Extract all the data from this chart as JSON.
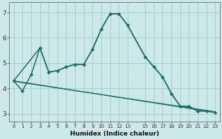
{
  "xlabel": "Humidex (Indice chaleur)",
  "bg_color": "#cce8e8",
  "grid_color": "#aacccc",
  "line_color": "#1a6e6a",
  "xlim": [
    -0.5,
    23.5
  ],
  "ylim": [
    2.7,
    7.4
  ],
  "xticks": [
    0,
    1,
    2,
    3,
    4,
    5,
    6,
    7,
    8,
    9,
    10,
    11,
    12,
    13,
    15,
    16,
    17,
    18,
    19,
    20,
    21,
    22,
    23
  ],
  "yticks": [
    3,
    4,
    5,
    6,
    7
  ],
  "curve1_x": [
    0,
    1,
    2,
    3,
    4,
    5,
    6,
    7,
    8,
    9,
    10,
    11,
    12,
    13,
    15,
    16,
    17,
    18,
    19,
    20,
    21
  ],
  "curve1_y": [
    4.3,
    3.9,
    4.55,
    5.6,
    4.65,
    4.7,
    4.85,
    4.95,
    4.95,
    5.55,
    6.35,
    6.95,
    6.95,
    6.5,
    5.25,
    4.85,
    4.45,
    3.8,
    3.3,
    3.3,
    3.1
  ],
  "curve2_x": [
    0,
    3,
    4,
    5,
    6,
    7,
    8,
    9,
    10,
    11,
    12,
    13,
    15,
    16,
    17,
    18,
    19,
    20,
    21,
    22,
    23
  ],
  "curve2_y": [
    4.3,
    5.6,
    4.65,
    4.7,
    4.85,
    4.95,
    4.95,
    5.55,
    6.35,
    6.95,
    6.95,
    6.5,
    5.25,
    4.85,
    4.45,
    3.8,
    3.3,
    3.3,
    3.1,
    3.1,
    3.05
  ],
  "trend1_x": [
    0,
    23
  ],
  "trend1_y": [
    4.3,
    3.05
  ],
  "trend2_x": [
    0,
    23
  ],
  "trend2_y": [
    4.28,
    3.08
  ]
}
